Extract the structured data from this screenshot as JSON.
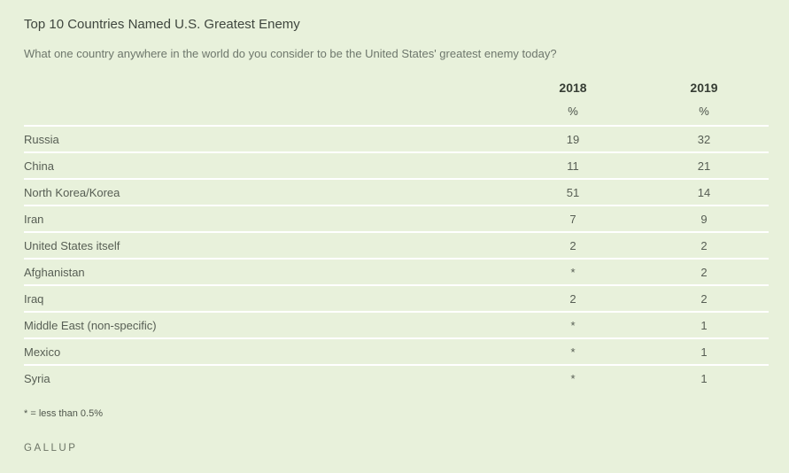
{
  "page": {
    "title": "Top 10 Countries Named U.S. Greatest Enemy",
    "subtitle": "What one country anywhere in the world do you consider to be the United States' greatest enemy today?",
    "footnote": "* = less than 0.5%",
    "brand": "GALLUP"
  },
  "table": {
    "columns": {
      "col1": "2018",
      "col2": "2019"
    },
    "units": {
      "col1": "%",
      "col2": "%"
    },
    "rows": [
      {
        "country": "Russia",
        "v2018": "19",
        "v2019": "32"
      },
      {
        "country": "China",
        "v2018": "11",
        "v2019": "21"
      },
      {
        "country": "North Korea/Korea",
        "v2018": "51",
        "v2019": "14"
      },
      {
        "country": "Iran",
        "v2018": "7",
        "v2019": "9"
      },
      {
        "country": "United States itself",
        "v2018": "2",
        "v2019": "2"
      },
      {
        "country": "Afghanistan",
        "v2018": "*",
        "v2019": "2"
      },
      {
        "country": "Iraq",
        "v2018": "2",
        "v2019": "2"
      },
      {
        "country": "Middle East (non-specific)",
        "v2018": "*",
        "v2019": "1"
      },
      {
        "country": "Mexico",
        "v2018": "*",
        "v2019": "1"
      },
      {
        "country": "Syria",
        "v2018": "*",
        "v2019": "1"
      }
    ]
  },
  "chart_data": {
    "type": "table",
    "title": "Top 10 Countries Named U.S. Greatest Enemy",
    "subtitle": "What one country anywhere in the world do you consider to be the United States' greatest enemy today?",
    "columns": [
      "2018",
      "2019"
    ],
    "unit": "%",
    "categories": [
      "Russia",
      "China",
      "North Korea/Korea",
      "Iran",
      "United States itself",
      "Afghanistan",
      "Iraq",
      "Middle East (non-specific)",
      "Mexico",
      "Syria"
    ],
    "series": [
      {
        "name": "2018",
        "values": [
          "19",
          "11",
          "51",
          "7",
          "2",
          "*",
          "2",
          "*",
          "*",
          "*"
        ]
      },
      {
        "name": "2019",
        "values": [
          "32",
          "21",
          "14",
          "9",
          "2",
          "2",
          "2",
          "1",
          "1",
          "1"
        ]
      }
    ],
    "footnote": "* = less than 0.5%",
    "source": "GALLUP"
  },
  "colors": {
    "background": "#e8f1db",
    "separator": "#ffffff",
    "title_text": "#3f463e",
    "subtitle_text": "#6e776c",
    "header_text": "#363d34",
    "row_text": "#575e54",
    "brand_text": "#6b7365"
  }
}
